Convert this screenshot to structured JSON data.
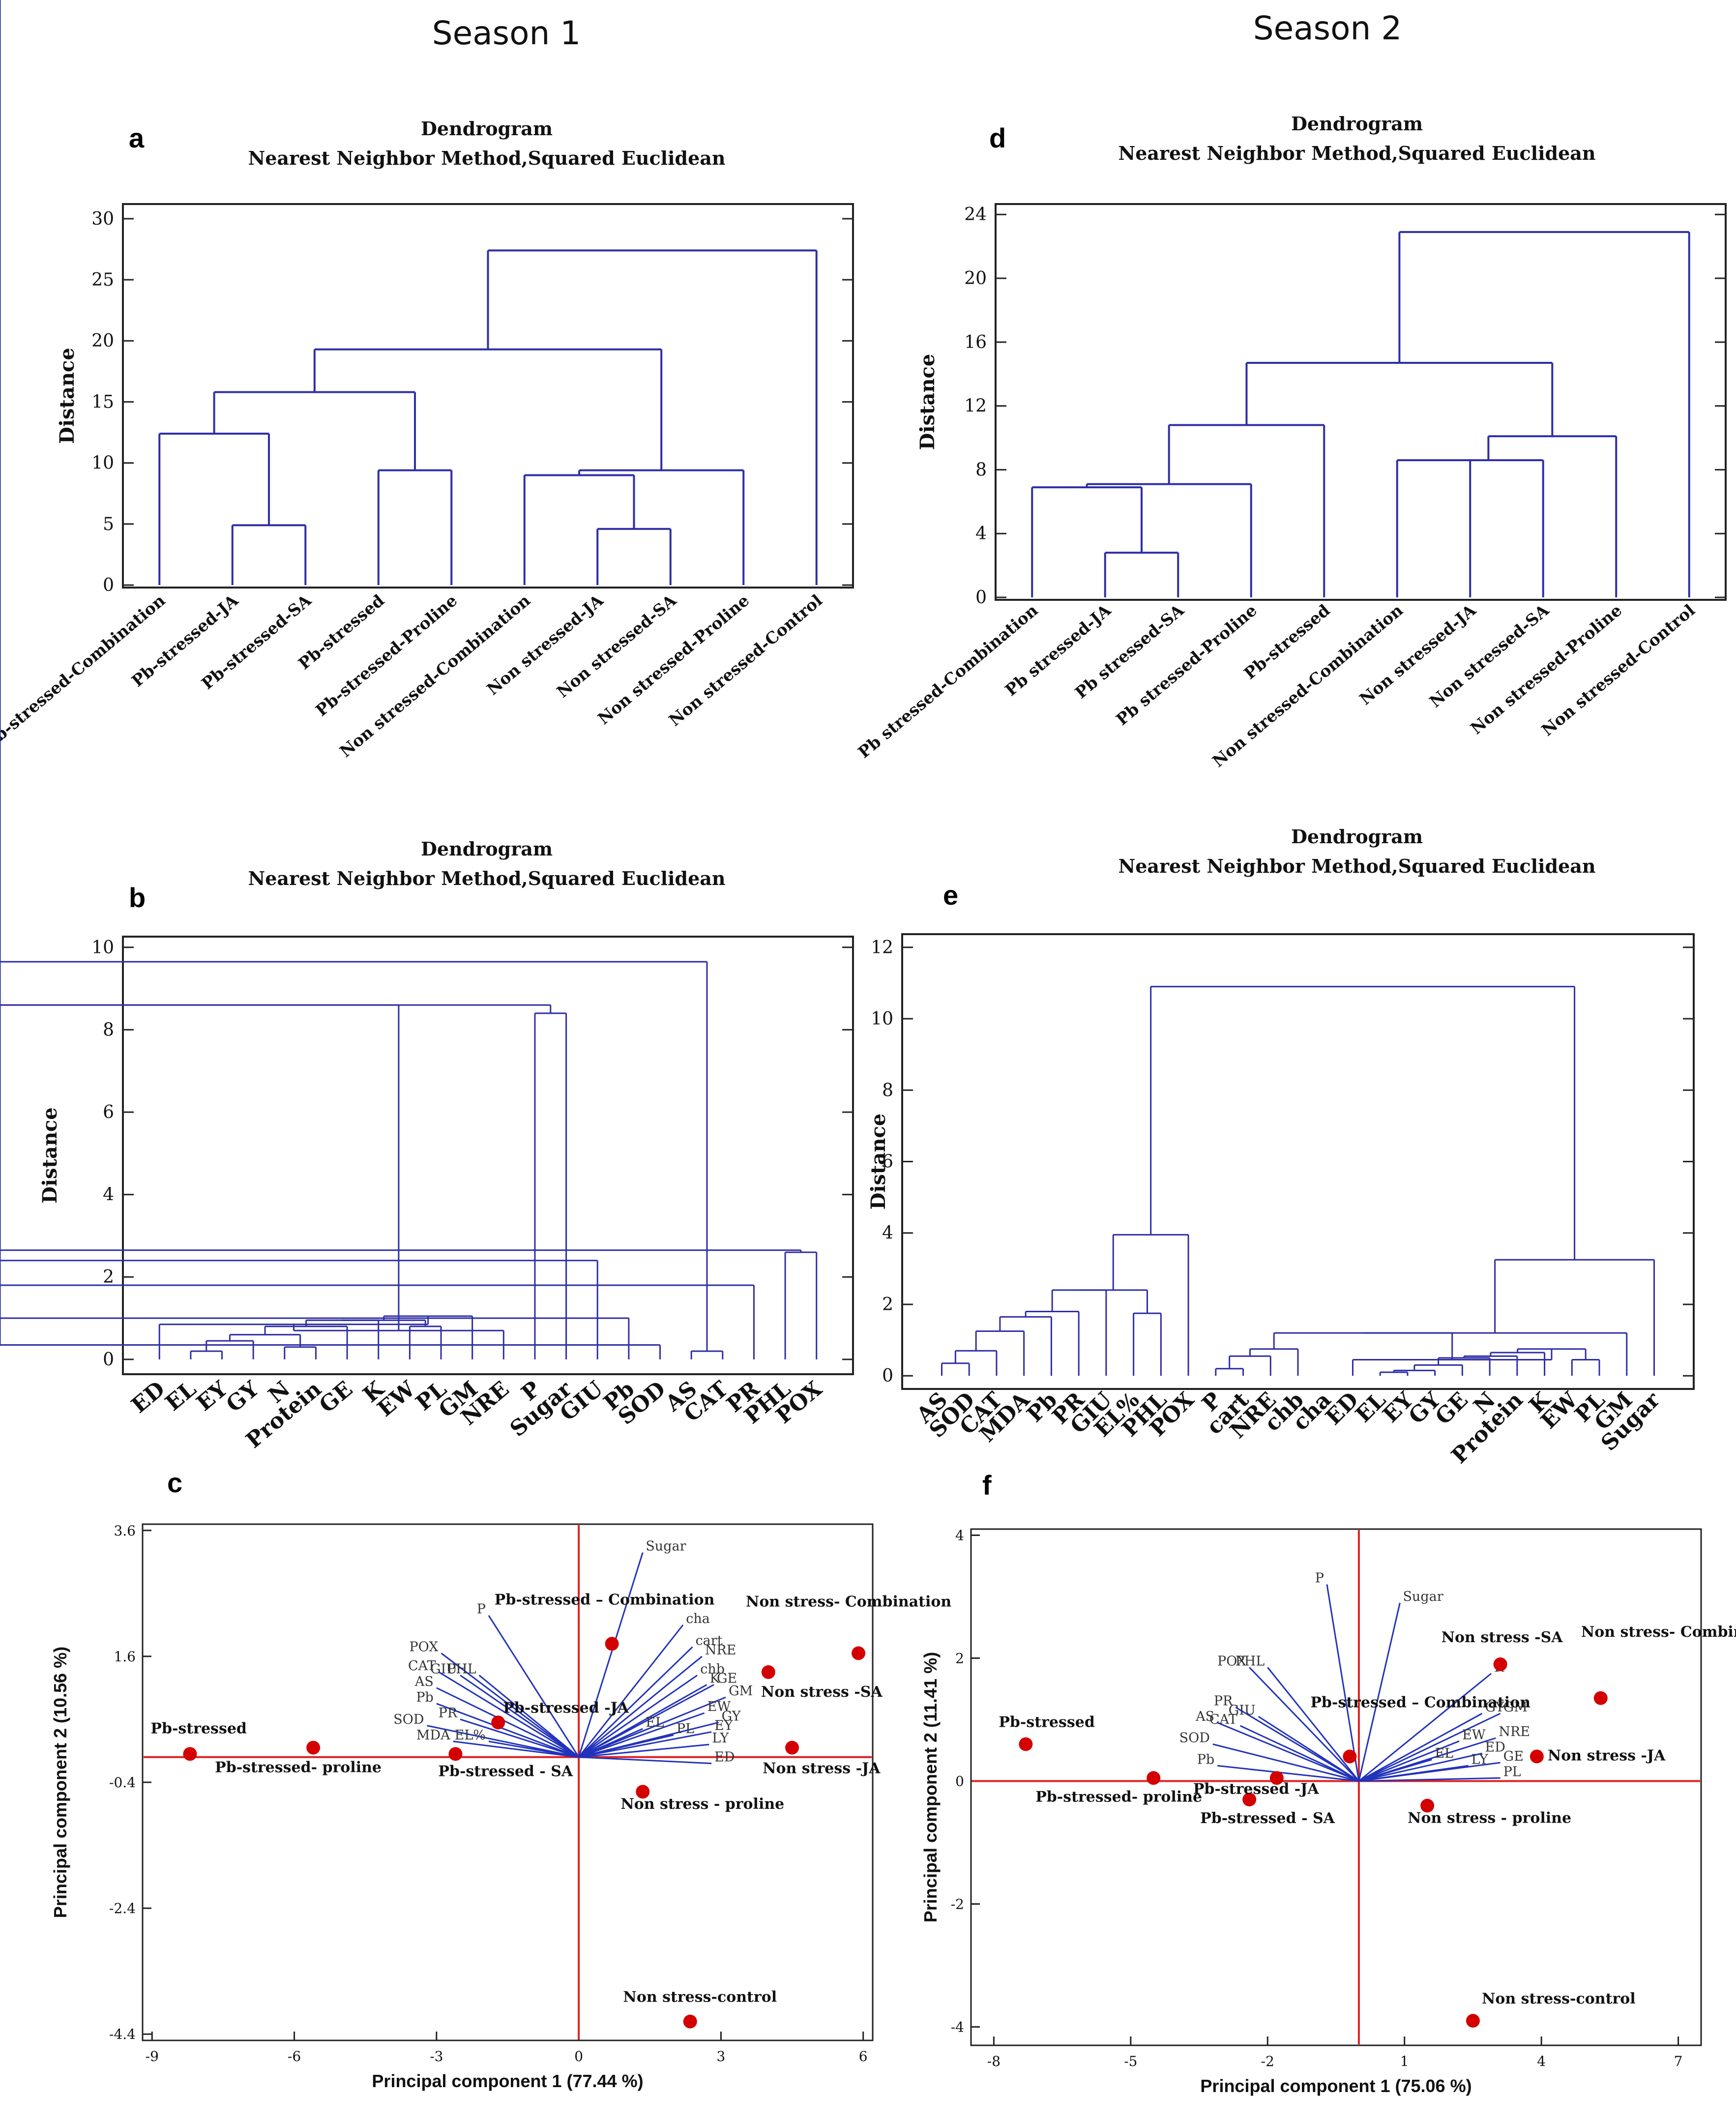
{
  "figure": {
    "season_labels": [
      "Season 1",
      "Season 2"
    ],
    "colors": {
      "tree": "#2e2ea6",
      "axis_red": "#e02020",
      "point_red": "#d40000",
      "vector": "#2233bb",
      "frame": "#222222"
    }
  },
  "chart_data": [
    {
      "id": "a",
      "panel_label": "a",
      "type": "dendrogram",
      "title": "Dendrogram",
      "subtitle": "Nearest Neighbor Method,Squared Euclidean",
      "ylabel": "Distance",
      "ylim": [
        0,
        31
      ],
      "yticks": [
        0,
        5,
        10,
        15,
        20,
        25,
        30
      ],
      "leaves": [
        "Pb-stressed-Combination",
        "Pb-stressed-JA",
        "Pb-stressed-SA",
        "Pb-stressed",
        "Pb-stressed-Proline",
        "Non stressed-Combination",
        "Non stressed-JA",
        "Non stressed-SA",
        "Non stressed-Proline",
        "Non stressed-Control"
      ],
      "merges": [
        [
          1,
          2,
          4.9
        ],
        [
          0,
          10,
          12.4
        ],
        [
          3,
          4,
          9.4
        ],
        [
          11,
          12,
          15.8
        ],
        [
          6,
          7,
          4.6
        ],
        [
          5,
          14,
          9.0
        ],
        [
          15,
          8,
          9.4
        ],
        [
          13,
          16,
          19.3
        ],
        [
          17,
          9,
          27.4
        ]
      ]
    },
    {
      "id": "d",
      "panel_label": "d",
      "type": "dendrogram",
      "title": "Dendrogram",
      "subtitle": "Nearest Neighbor Method,Squared Euclidean",
      "ylabel": "Distance",
      "ylim": [
        0,
        24.5
      ],
      "yticks": [
        0,
        4,
        8,
        12,
        16,
        20,
        24
      ],
      "leaves": [
        "Pb stressed-Combination",
        "Pb stressed-JA",
        "Pb stressed-SA",
        "Pb stressed-Proline",
        "Pb-stressed",
        "Non stressed-Combination",
        "Non stressed-JA",
        "Non stressed-SA",
        "Non stressed-Proline",
        "Non stressed-Control"
      ],
      "merges": [
        [
          1,
          2,
          2.8
        ],
        [
          0,
          10,
          6.9
        ],
        [
          11,
          3,
          7.1
        ],
        [
          12,
          4,
          10.8
        ],
        [
          5,
          6,
          8.6
        ],
        [
          14,
          7,
          8.6
        ],
        [
          15,
          8,
          10.1
        ],
        [
          13,
          16,
          14.7
        ],
        [
          17,
          9,
          22.9
        ]
      ]
    },
    {
      "id": "b",
      "panel_label": "b",
      "type": "dendrogram",
      "title": "Dendrogram",
      "subtitle": "Nearest Neighbor Method,Squared Euclidean",
      "ylabel": "Distance",
      "ylim": [
        -0.3,
        10.2
      ],
      "yticks": [
        0,
        2,
        4,
        6,
        8,
        10
      ],
      "leaves": [
        "ED",
        "EL",
        "EY",
        "GY",
        "N",
        "Protein",
        "GE",
        "K",
        "EW",
        "PL",
        "GM",
        "NRE",
        "P",
        "Sugar",
        "GIU",
        "Pb",
        "SOD",
        "AS",
        "CAT",
        "PR",
        "PHL",
        "POX"
      ],
      "merges": [
        [
          1,
          2,
          0.2
        ],
        [
          4,
          5,
          0.3
        ],
        [
          22,
          3,
          0.45
        ],
        [
          24,
          23,
          0.6
        ],
        [
          25,
          6,
          0.8
        ],
        [
          26,
          7,
          0.95
        ],
        [
          8,
          9,
          0.8
        ],
        [
          27,
          28,
          0.95
        ],
        [
          29,
          10,
          1.05
        ],
        [
          0,
          30,
          0.85
        ],
        [
          11,
          31,
          0.7
        ],
        [
          32,
          33,
          8.6
        ],
        [
          12,
          13,
          8.4
        ],
        [
          34,
          35,
          8.6
        ],
        [
          17,
          18,
          0.2
        ],
        [
          16,
          37,
          0.35
        ],
        [
          15,
          38,
          1.0
        ],
        [
          39,
          19,
          1.8
        ],
        [
          14,
          40,
          2.4
        ],
        [
          20,
          21,
          2.6
        ],
        [
          41,
          42,
          2.65
        ],
        [
          36,
          43,
          9.65
        ]
      ]
    },
    {
      "id": "e",
      "panel_label": "e",
      "type": "dendrogram",
      "title": "Dendrogram",
      "subtitle": "Nearest Neighbor Method,Squared Euclidean",
      "ylabel": "Distance",
      "ylim": [
        -0.3,
        12.3
      ],
      "yticks": [
        0,
        2,
        4,
        6,
        8,
        10,
        12
      ],
      "leaves": [
        "AS",
        "SOD",
        "CAT",
        "MDA",
        "Pb",
        "PR",
        "GIU",
        "EL%",
        "PHL",
        "POX",
        "P",
        "cart",
        "NRE",
        "chb",
        "cha",
        "ED",
        "EL",
        "EY",
        "GY",
        "GE",
        "N",
        "Protein",
        "K",
        "EW",
        "PL",
        "GM",
        "Sugar"
      ],
      "merges": [
        [
          0,
          1,
          0.35
        ],
        [
          27,
          2,
          0.7
        ],
        [
          28,
          3,
          1.25
        ],
        [
          29,
          4,
          1.65
        ],
        [
          30,
          5,
          1.8
        ],
        [
          31,
          6,
          2.4
        ],
        [
          7,
          8,
          1.75
        ],
        [
          32,
          33,
          2.4
        ],
        [
          34,
          9,
          3.95
        ],
        [
          10,
          11,
          0.2
        ],
        [
          36,
          12,
          0.55
        ],
        [
          37,
          13,
          0.75
        ],
        [
          16,
          17,
          0.1
        ],
        [
          39,
          18,
          0.15
        ],
        [
          40,
          19,
          0.3
        ],
        [
          41,
          20,
          0.5
        ],
        [
          42,
          21,
          0.55
        ],
        [
          23,
          24,
          0.45
        ],
        [
          43,
          22,
          0.65
        ],
        [
          45,
          44,
          0.75
        ],
        [
          15,
          46,
          0.45
        ],
        [
          38,
          47,
          1.2
        ],
        [
          48,
          25,
          1.2
        ],
        [
          49,
          26,
          3.25
        ],
        [
          35,
          50,
          10.9
        ]
      ]
    },
    {
      "id": "c",
      "panel_label": "c",
      "type": "scatter",
      "xlabel": "Principal component 1 (77.44 %)",
      "ylabel": "Principal component 2 (10.56 %)",
      "xlim": [
        -9.2,
        6.2
      ],
      "ylim": [
        -4.5,
        3.7
      ],
      "xticks": [
        -9,
        -6,
        -3,
        0,
        3,
        6
      ],
      "yticks": [
        -4.4,
        -2.4,
        -0.4,
        1.6,
        3.6
      ],
      "observations": [
        {
          "name": "Pb-stressed",
          "x": -8.2,
          "y": 0.05
        },
        {
          "name": "Pb-stressed- proline",
          "x": -5.6,
          "y": 0.15
        },
        {
          "name": "Pb-stressed - SA",
          "x": -2.6,
          "y": 0.05
        },
        {
          "name": "Pb-stressed -JA",
          "x": -1.7,
          "y": 0.55
        },
        {
          "name": "Pb-stressed – Combination",
          "x": 0.7,
          "y": 1.8
        },
        {
          "name": "Non stress - proline",
          "x": 1.35,
          "y": -0.55
        },
        {
          "name": "Non stress -SA",
          "x": 4.0,
          "y": 1.35
        },
        {
          "name": "Non stress- Combination",
          "x": 5.9,
          "y": 1.65
        },
        {
          "name": "Non stress -JA",
          "x": 4.5,
          "y": 0.15
        },
        {
          "name": "Non stress-control",
          "x": 2.35,
          "y": -4.2
        }
      ],
      "variables": [
        {
          "name": "Sugar",
          "x": 1.35,
          "y": 3.25
        },
        {
          "name": "P",
          "x": -1.9,
          "y": 2.25
        },
        {
          "name": "POX",
          "x": -2.9,
          "y": 1.65
        },
        {
          "name": "CAT",
          "x": -2.95,
          "y": 1.35
        },
        {
          "name": "GIU",
          "x": -2.5,
          "y": 1.3
        },
        {
          "name": "PHL",
          "x": -2.1,
          "y": 1.3
        },
        {
          "name": "AS",
          "x": -3.0,
          "y": 1.1
        },
        {
          "name": "Pb",
          "x": -3.0,
          "y": 0.85
        },
        {
          "name": "PR",
          "x": -2.5,
          "y": 0.6
        },
        {
          "name": "SOD",
          "x": -3.2,
          "y": 0.5
        },
        {
          "name": "MDA",
          "x": -2.65,
          "y": 0.25
        },
        {
          "name": "EL%",
          "x": -1.9,
          "y": 0.25
        },
        {
          "name": "cha",
          "x": 2.2,
          "y": 2.1
        },
        {
          "name": "cart",
          "x": 2.4,
          "y": 1.75
        },
        {
          "name": "NRE",
          "x": 2.6,
          "y": 1.6
        },
        {
          "name": "chb",
          "x": 2.5,
          "y": 1.3
        },
        {
          "name": "K",
          "x": 2.7,
          "y": 1.15
        },
        {
          "name": "GE",
          "x": 2.85,
          "y": 1.15
        },
        {
          "name": "GM",
          "x": 3.1,
          "y": 0.95
        },
        {
          "name": "EW",
          "x": 2.65,
          "y": 0.7
        },
        {
          "name": "GY",
          "x": 2.95,
          "y": 0.55
        },
        {
          "name": "EY",
          "x": 2.8,
          "y": 0.4
        },
        {
          "name": "EL",
          "x": 1.35,
          "y": 0.45
        },
        {
          "name": "PL",
          "x": 2.0,
          "y": 0.35
        },
        {
          "name": "LY",
          "x": 2.75,
          "y": 0.2
        },
        {
          "name": "ED",
          "x": 2.8,
          "y": -0.1
        }
      ]
    },
    {
      "id": "f",
      "panel_label": "f",
      "type": "scatter",
      "xlabel": "Principal component 1 (75.06 %)",
      "ylabel": "Principal component 2 (11.41 %)",
      "xlim": [
        -8.5,
        7.5
      ],
      "ylim": [
        -4.3,
        4.1
      ],
      "xticks": [
        -8,
        -5,
        -2,
        1,
        4,
        7
      ],
      "yticks": [
        -4,
        -2,
        0,
        2,
        4
      ],
      "observations": [
        {
          "name": "Pb-stressed",
          "x": -7.3,
          "y": 0.6
        },
        {
          "name": "Pb-stressed- proline",
          "x": -4.5,
          "y": 0.05
        },
        {
          "name": "Pb-stressed - SA",
          "x": -2.4,
          "y": -0.3
        },
        {
          "name": "Pb-stressed -JA",
          "x": -1.8,
          "y": 0.05
        },
        {
          "name": "Pb-stressed – Combination",
          "x": -0.2,
          "y": 0.4
        },
        {
          "name": "Non stress - proline",
          "x": 1.5,
          "y": -0.4
        },
        {
          "name": "Non stress -SA",
          "x": 3.1,
          "y": 1.9
        },
        {
          "name": "Non stress- Combinatio n",
          "x": 5.3,
          "y": 1.35
        },
        {
          "name": "Non stress -JA",
          "x": 3.9,
          "y": 0.4
        },
        {
          "name": "Non stress-control",
          "x": 2.5,
          "y": -3.9
        }
      ],
      "variables": [
        {
          "name": "P",
          "x": -0.7,
          "y": 3.2
        },
        {
          "name": "Sugar",
          "x": 0.9,
          "y": 2.9
        },
        {
          "name": "POX",
          "x": -2.4,
          "y": 1.85
        },
        {
          "name": "PHL",
          "x": -2.0,
          "y": 1.85
        },
        {
          "name": "PR",
          "x": -2.7,
          "y": 1.2
        },
        {
          "name": "GIU",
          "x": -2.2,
          "y": 1.05
        },
        {
          "name": "AS",
          "x": -3.1,
          "y": 0.95
        },
        {
          "name": "CAT",
          "x": -2.6,
          "y": 0.9
        },
        {
          "name": "SOD",
          "x": -3.2,
          "y": 0.6
        },
        {
          "name": "Pb",
          "x": -3.1,
          "y": 0.25
        },
        {
          "name": "K",
          "x": 2.9,
          "y": 1.75
        },
        {
          "name": "GY",
          "x": 2.7,
          "y": 1.1
        },
        {
          "name": "GM",
          "x": 3.1,
          "y": 1.1
        },
        {
          "name": "NRE",
          "x": 3.0,
          "y": 0.7
        },
        {
          "name": "EW",
          "x": 2.2,
          "y": 0.65
        },
        {
          "name": "ED",
          "x": 2.7,
          "y": 0.45
        },
        {
          "name": "EL",
          "x": 1.6,
          "y": 0.35
        },
        {
          "name": "LY",
          "x": 2.4,
          "y": 0.25
        },
        {
          "name": "GE",
          "x": 3.1,
          "y": 0.3
        },
        {
          "name": "PL",
          "x": 3.1,
          "y": 0.05
        }
      ]
    }
  ]
}
